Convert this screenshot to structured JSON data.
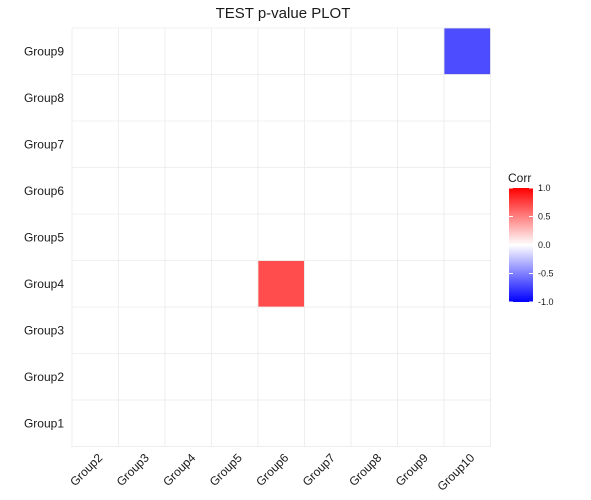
{
  "chart_data": {
    "type": "heatmap",
    "title": "TEST p-value PLOT",
    "xlabel": "",
    "ylabel": "",
    "x_categories": [
      "Group2",
      "Group3",
      "Group4",
      "Group5",
      "Group6",
      "Group7",
      "Group8",
      "Group9",
      "Group10"
    ],
    "y_categories": [
      "Group1",
      "Group2",
      "Group3",
      "Group4",
      "Group5",
      "Group6",
      "Group7",
      "Group8",
      "Group9"
    ],
    "grid": true,
    "legend": {
      "title": "Corr",
      "position": "right",
      "range": [
        -1,
        1
      ],
      "ticks": [
        "1.0",
        "0.5",
        "0.0",
        "-0.5",
        "-1.0"
      ],
      "tick_values": [
        1.0,
        0.5,
        0.0,
        -0.5,
        -1.0
      ],
      "low_color": "#0000ff",
      "mid_color": "#ffffff",
      "high_color": "#ff0000"
    },
    "cells": [
      {
        "x": "Group6",
        "y": "Group4",
        "value": 0.7
      },
      {
        "x": "Group10",
        "y": "Group9",
        "value": -0.7
      }
    ],
    "empty_region": "lower-triangle (x index >= y index shown as white tiles)"
  }
}
